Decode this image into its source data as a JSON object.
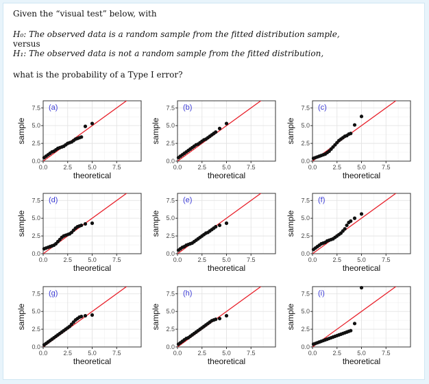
{
  "question": {
    "intro": "Given the “visual test” below, with",
    "h0_label": "H₀:",
    "h0_text": "The observed data is a random sample from the fitted distribution sample,",
    "versus": "versus",
    "h1_label": "H₁:",
    "h1_text": "The observed data is not a random sample from the fitted distribution,",
    "ask": "what is the probability of a Type I error?"
  },
  "colors": {
    "page_bg": "#e8f4fb",
    "line": "#e8202a",
    "point": "#111111",
    "panel_label": "#3a3ad6"
  },
  "chart_data": {
    "type": "scatter",
    "layout": "3x3 small multiples (QQ plots) with reference line y = x",
    "xlabel": "theoretical",
    "ylabel": "sample",
    "xlim": [
      0,
      10
    ],
    "ylim": [
      0,
      8.5
    ],
    "xticks": [
      "0.0",
      "2.5",
      "5.0",
      "7.5"
    ],
    "yticks": [
      "0.0",
      "2.5",
      "5.0",
      "7.5"
    ],
    "grid": true,
    "reference_line": {
      "slope": 1,
      "intercept": 0
    },
    "panels": [
      {
        "label": "(a)",
        "x": [
          0.1,
          0.3,
          0.5,
          0.7,
          0.9,
          1.1,
          1.3,
          1.5,
          1.7,
          1.9,
          2.1,
          2.3,
          2.5,
          2.7,
          2.9,
          3.1,
          3.3,
          3.5,
          3.7,
          3.9,
          4.3,
          5.0
        ],
        "y": [
          0.5,
          0.7,
          0.9,
          1.1,
          1.3,
          1.4,
          1.6,
          1.8,
          1.9,
          2.0,
          2.1,
          2.3,
          2.5,
          2.6,
          2.7,
          2.9,
          3.1,
          3.2,
          3.3,
          3.4,
          4.9,
          5.3
        ]
      },
      {
        "label": "(b)",
        "x": [
          0.1,
          0.3,
          0.5,
          0.7,
          0.9,
          1.1,
          1.3,
          1.5,
          1.7,
          1.9,
          2.1,
          2.3,
          2.5,
          2.7,
          2.9,
          3.1,
          3.3,
          3.5,
          3.7,
          3.9,
          4.3,
          5.0
        ],
        "y": [
          0.5,
          0.7,
          0.9,
          1.1,
          1.3,
          1.5,
          1.7,
          1.9,
          2.1,
          2.3,
          2.4,
          2.6,
          2.8,
          3.0,
          3.1,
          3.3,
          3.5,
          3.7,
          3.9,
          4.1,
          4.6,
          5.3
        ]
      },
      {
        "label": "(c)",
        "x": [
          0.1,
          0.3,
          0.5,
          0.7,
          0.9,
          1.1,
          1.3,
          1.5,
          1.7,
          1.9,
          2.1,
          2.3,
          2.5,
          2.7,
          2.9,
          3.1,
          3.3,
          3.5,
          3.7,
          3.9,
          4.3,
          5.0
        ],
        "y": [
          0.4,
          0.5,
          0.6,
          0.7,
          0.8,
          0.9,
          1.0,
          1.2,
          1.4,
          1.7,
          2.0,
          2.3,
          2.6,
          2.9,
          3.1,
          3.3,
          3.5,
          3.6,
          3.8,
          3.9,
          5.1,
          6.3
        ]
      },
      {
        "label": "(d)",
        "x": [
          0.1,
          0.3,
          0.5,
          0.7,
          0.9,
          1.1,
          1.3,
          1.5,
          1.7,
          1.9,
          2.1,
          2.3,
          2.5,
          2.7,
          2.9,
          3.1,
          3.3,
          3.5,
          3.7,
          3.9,
          4.3,
          5.0
        ],
        "y": [
          0.7,
          0.8,
          0.9,
          1.0,
          1.1,
          1.2,
          1.4,
          1.7,
          2.0,
          2.3,
          2.5,
          2.6,
          2.7,
          2.8,
          3.0,
          3.3,
          3.6,
          3.8,
          3.9,
          4.0,
          4.2,
          4.3
        ]
      },
      {
        "label": "(e)",
        "x": [
          0.1,
          0.3,
          0.5,
          0.7,
          0.9,
          1.1,
          1.3,
          1.5,
          1.7,
          1.9,
          2.1,
          2.3,
          2.5,
          2.7,
          2.9,
          3.1,
          3.3,
          3.5,
          3.7,
          3.9,
          4.3,
          5.0
        ],
        "y": [
          0.5,
          0.7,
          0.9,
          1.0,
          1.2,
          1.3,
          1.4,
          1.5,
          1.7,
          1.9,
          2.1,
          2.3,
          2.5,
          2.7,
          2.9,
          3.0,
          3.2,
          3.4,
          3.6,
          3.8,
          4.0,
          4.3
        ]
      },
      {
        "label": "(f)",
        "x": [
          0.1,
          0.3,
          0.5,
          0.7,
          0.9,
          1.1,
          1.3,
          1.5,
          1.7,
          1.9,
          2.1,
          2.3,
          2.5,
          2.7,
          2.9,
          3.1,
          3.3,
          3.5,
          3.7,
          3.9,
          4.3,
          5.0
        ],
        "y": [
          0.6,
          0.8,
          1.0,
          1.2,
          1.4,
          1.5,
          1.6,
          1.8,
          1.9,
          2.0,
          2.1,
          2.3,
          2.5,
          2.7,
          2.9,
          3.2,
          3.5,
          4.0,
          4.4,
          4.6,
          5.0,
          5.6
        ]
      },
      {
        "label": "(g)",
        "x": [
          0.1,
          0.3,
          0.5,
          0.7,
          0.9,
          1.1,
          1.3,
          1.5,
          1.7,
          1.9,
          2.1,
          2.3,
          2.5,
          2.7,
          2.9,
          3.1,
          3.3,
          3.5,
          3.7,
          3.9,
          4.3,
          5.0
        ],
        "y": [
          0.3,
          0.5,
          0.7,
          0.9,
          1.1,
          1.3,
          1.5,
          1.7,
          1.9,
          2.1,
          2.3,
          2.5,
          2.7,
          2.9,
          3.2,
          3.5,
          3.8,
          4.0,
          4.2,
          4.3,
          4.4,
          4.5
        ]
      },
      {
        "label": "(h)",
        "x": [
          0.1,
          0.3,
          0.5,
          0.7,
          0.9,
          1.1,
          1.3,
          1.5,
          1.7,
          1.9,
          2.1,
          2.3,
          2.5,
          2.7,
          2.9,
          3.1,
          3.3,
          3.5,
          3.7,
          3.9,
          4.3,
          5.0
        ],
        "y": [
          0.4,
          0.6,
          0.8,
          1.0,
          1.2,
          1.3,
          1.5,
          1.7,
          1.9,
          2.1,
          2.3,
          2.5,
          2.7,
          2.9,
          3.1,
          3.3,
          3.5,
          3.7,
          3.8,
          3.9,
          4.0,
          4.4
        ]
      },
      {
        "label": "(i)",
        "x": [
          0.1,
          0.3,
          0.5,
          0.7,
          0.9,
          1.1,
          1.3,
          1.5,
          1.7,
          1.9,
          2.1,
          2.3,
          2.5,
          2.7,
          2.9,
          3.1,
          3.3,
          3.5,
          3.7,
          3.9,
          4.3,
          5.0
        ],
        "y": [
          0.4,
          0.5,
          0.6,
          0.7,
          0.8,
          0.9,
          1.0,
          1.1,
          1.2,
          1.3,
          1.4,
          1.5,
          1.6,
          1.7,
          1.8,
          1.9,
          2.0,
          2.1,
          2.2,
          2.3,
          3.3,
          9.3
        ]
      }
    ]
  }
}
